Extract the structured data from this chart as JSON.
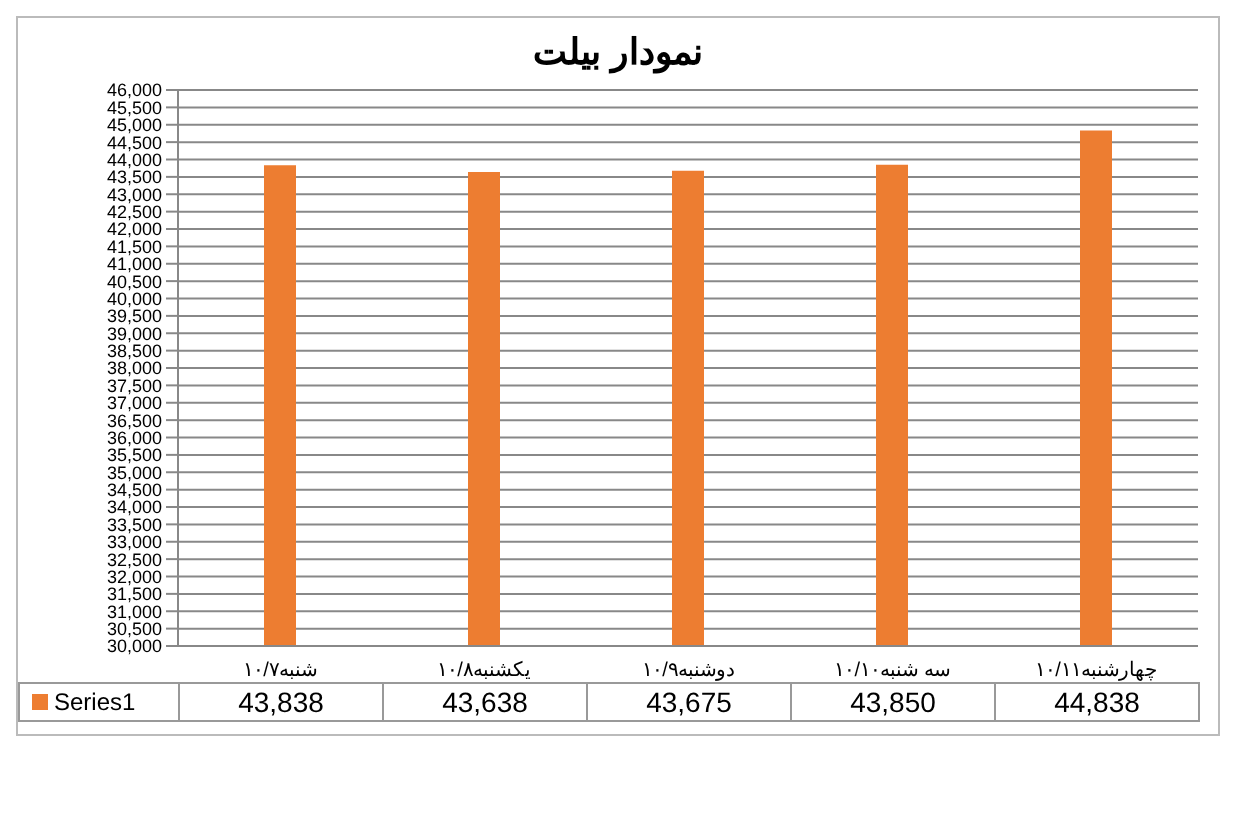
{
  "chart_data": {
    "type": "bar",
    "title": "نمودار بیلت",
    "categories": [
      "شنبه۱۰/۷",
      "یکشنبه۱۰/۸",
      "دوشنبه۱۰/۹",
      "سه شنبه۱۰/۱۰",
      "چهارشنبه۱۰/۱۱"
    ],
    "series": [
      {
        "name": "Series1",
        "color": "#ed7d31",
        "values": [
          43838,
          43638,
          43675,
          43850,
          44838
        ],
        "value_labels": [
          "43,838",
          "43,638",
          "43,675",
          "43,850",
          "44,838"
        ]
      }
    ],
    "ylim": [
      30000,
      46000
    ],
    "yticks": [
      {
        "value": 30000,
        "label": "30,000"
      },
      {
        "value": 30500,
        "label": "30,500"
      },
      {
        "value": 31000,
        "label": "31,000"
      },
      {
        "value": 31500,
        "label": "31,500"
      },
      {
        "value": 32000,
        "label": "32,000"
      },
      {
        "value": 32500,
        "label": "32,500"
      },
      {
        "value": 33000,
        "label": "33,000"
      },
      {
        "value": 33500,
        "label": "33,500"
      },
      {
        "value": 34000,
        "label": "34,000"
      },
      {
        "value": 34500,
        "label": "34,500"
      },
      {
        "value": 35000,
        "label": "35,000"
      },
      {
        "value": 35500,
        "label": "35,500"
      },
      {
        "value": 36000,
        "label": "36,000"
      },
      {
        "value": 36500,
        "label": "36,500"
      },
      {
        "value": 37000,
        "label": "37,000"
      },
      {
        "value": 37500,
        "label": "37,500"
      },
      {
        "value": 38000,
        "label": "38,000"
      },
      {
        "value": 38500,
        "label": "38,500"
      },
      {
        "value": 39000,
        "label": "39,000"
      },
      {
        "value": 39500,
        "label": "39,500"
      },
      {
        "value": 40000,
        "label": "40,000"
      },
      {
        "value": 40500,
        "label": "40,500"
      },
      {
        "value": 41000,
        "label": "41,000"
      },
      {
        "value": 41500,
        "label": "41,500"
      },
      {
        "value": 42000,
        "label": "42,000"
      },
      {
        "value": 42500,
        "label": "42,500"
      },
      {
        "value": 43000,
        "label": "43,000"
      },
      {
        "value": 43500,
        "label": "43,500"
      },
      {
        "value": 44000,
        "label": "44,000"
      },
      {
        "value": 44500,
        "label": "44,500"
      },
      {
        "value": 45000,
        "label": "45,000"
      },
      {
        "value": 45500,
        "label": "45,500"
      },
      {
        "value": 46000,
        "label": "46,000"
      }
    ],
    "grid": "y",
    "legend": "bottom"
  }
}
